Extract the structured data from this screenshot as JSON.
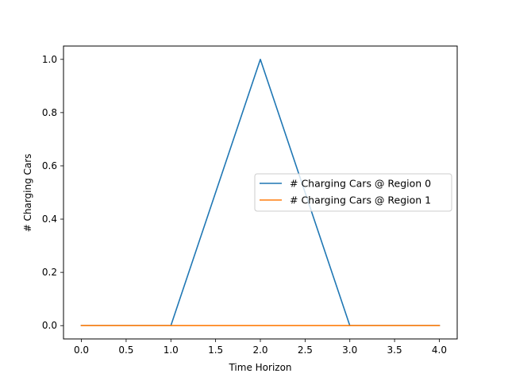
{
  "chart_data": {
    "type": "line",
    "xlabel": "Time Horizon",
    "ylabel": "# Charging Cars",
    "xlim": [
      -0.2,
      4.2
    ],
    "ylim": [
      -0.05,
      1.05
    ],
    "xticks": [
      "0.0",
      "0.5",
      "1.0",
      "1.5",
      "2.0",
      "2.5",
      "3.0",
      "3.5",
      "4.0"
    ],
    "yticks": [
      "0.0",
      "0.2",
      "0.4",
      "0.6",
      "0.8",
      "1.0"
    ],
    "grid": false,
    "legend_position": "center-right",
    "x": [
      0,
      1,
      2,
      3,
      4
    ],
    "series": [
      {
        "name": "# Charging Cars @ Region 0",
        "values": [
          0,
          0,
          1,
          0,
          0
        ],
        "color": "#1f77b4"
      },
      {
        "name": "# Charging Cars @ Region 1",
        "values": [
          0,
          0,
          0,
          0,
          0
        ],
        "color": "#ff7f0e"
      }
    ]
  }
}
